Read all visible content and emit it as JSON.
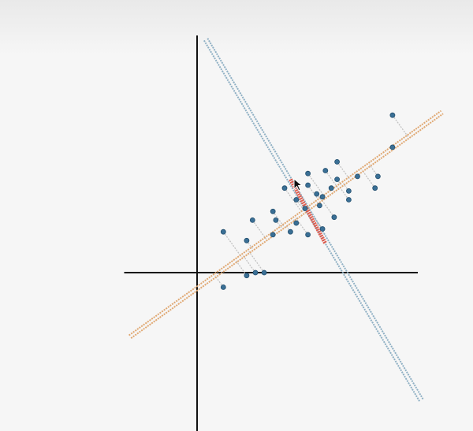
{
  "chart_data": {
    "type": "scatter",
    "title": "",
    "xlabel": "",
    "ylabel": "",
    "xlim": [
      -2.5,
      7.0
    ],
    "ylim": [
      -4.7,
      7.0
    ],
    "grid": false,
    "points": [
      [
        0.9,
        -0.5
      ],
      [
        1.7,
        -0.1
      ],
      [
        2.3,
        0.0
      ],
      [
        2.0,
        0.0
      ],
      [
        0.9,
        1.4
      ],
      [
        1.7,
        1.1
      ],
      [
        2.6,
        1.3
      ],
      [
        3.2,
        1.4
      ],
      [
        3.8,
        1.3
      ],
      [
        1.9,
        1.8
      ],
      [
        2.7,
        1.8
      ],
      [
        3.4,
        1.7
      ],
      [
        4.3,
        1.5
      ],
      [
        4.7,
        1.9
      ],
      [
        2.6,
        2.1
      ],
      [
        3.7,
        2.2
      ],
      [
        4.2,
        2.3
      ],
      [
        4.3,
        2.6
      ],
      [
        5.2,
        2.5
      ],
      [
        3.4,
        2.5
      ],
      [
        4.1,
        2.7
      ],
      [
        4.6,
        2.9
      ],
      [
        5.2,
        2.8
      ],
      [
        6.1,
        2.9
      ],
      [
        3.0,
        2.9
      ],
      [
        3.8,
        3.0
      ],
      [
        4.8,
        3.2
      ],
      [
        5.5,
        3.3
      ],
      [
        6.2,
        3.3
      ],
      [
        3.8,
        3.4
      ],
      [
        4.4,
        3.5
      ],
      [
        4.8,
        3.8
      ],
      [
        6.7,
        4.3
      ],
      [
        6.7,
        5.4
      ]
    ],
    "lines": [
      {
        "name": "",
        "role": "principal-axis",
        "color": "#e0a872",
        "from": [
          -2.3,
          -2.2
        ],
        "to": [
          8.4,
          5.5
        ]
      },
      {
        "name": "",
        "role": "orthogonal-axis",
        "color": "#8fb0c4",
        "from": [
          0.3,
          8.0
        ],
        "to": [
          7.7,
          -4.4
        ]
      },
      {
        "name": "",
        "role": "projection-segment",
        "color": "#e05040",
        "from": [
          3.2,
          3.2
        ],
        "to": [
          4.4,
          1.0
        ]
      }
    ],
    "colors": {
      "axis": "#111111",
      "point": "#3a6f95",
      "projection": "#bdbdbd"
    }
  }
}
